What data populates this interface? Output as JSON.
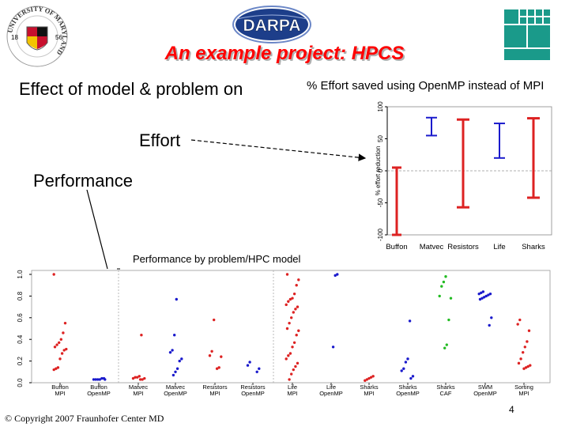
{
  "slide": {
    "title": "An example project: HPCS",
    "left_heading": "Effect of model & problem on",
    "effort_label": "Effort",
    "performance_label": "Performance",
    "copyright": "© Copyright 2007 Fraunhofer Center MD",
    "page_number": "4",
    "logos": {
      "umd": {
        "text": "UNIVERSITY OF MARYLAND",
        "year_left": "18",
        "year_right": "56"
      },
      "darpa": {
        "text": "DARPA"
      }
    },
    "colors": {
      "title": "#ff0000",
      "red": "#dd2222",
      "blue": "#1a1acc",
      "green": "#22bb22"
    }
  },
  "chart_data": [
    {
      "type": "range",
      "title": "% Effort saved using OpenMP instead of MPI",
      "ylabel": "% effort reduction",
      "categories": [
        "Buffon",
        "Matvec",
        "Resistors",
        "Life",
        "Sharks"
      ],
      "ylim": [
        -100,
        100
      ],
      "yticks": [
        -100,
        -50,
        0,
        50,
        100
      ],
      "reference_line": 0,
      "series": [
        {
          "category": "Buffon",
          "low": -100,
          "high": 5,
          "color": "#dd2222"
        },
        {
          "category": "Matvec",
          "low": 55,
          "high": 83,
          "color": "#1a1acc"
        },
        {
          "category": "Resistors",
          "low": -57,
          "high": 80,
          "color": "#dd2222"
        },
        {
          "category": "Life",
          "low": 20,
          "high": 74,
          "color": "#1a1acc"
        },
        {
          "category": "Sharks",
          "low": -42,
          "high": 82,
          "color": "#dd2222"
        }
      ]
    },
    {
      "type": "scatter",
      "title": "Performance by problem/HPC model",
      "yticks": [
        "0.0",
        "0.2",
        "0.4",
        "0.6",
        "0.8",
        "1.0"
      ],
      "ylim": [
        0,
        1
      ],
      "groups": [
        {
          "name": "Buffon",
          "model": "MPI",
          "color": "#dd2222",
          "values": [
            1.0,
            0.55,
            0.46,
            0.4,
            0.37,
            0.35,
            0.33,
            0.31,
            0.3,
            0.27,
            0.22,
            0.14,
            0.13,
            0.12
          ]
        },
        {
          "name": "Buffon",
          "model": "OpenMP",
          "color": "#1a1acc",
          "values": [
            0.04,
            0.04,
            0.03,
            0.03,
            0.03,
            0.03,
            0.03
          ]
        },
        {
          "name": "Matvec",
          "model": "MPI",
          "color": "#dd2222",
          "values": [
            0.44,
            0.06,
            0.05,
            0.05,
            0.04,
            0.04,
            0.03,
            0.03
          ]
        },
        {
          "name": "Matvec",
          "model": "OpenMP",
          "color": "#1a1acc",
          "values": [
            0.77,
            0.44,
            0.3,
            0.28,
            0.22,
            0.2,
            0.13,
            0.1,
            0.07
          ]
        },
        {
          "name": "Resistors",
          "model": "MPI",
          "color": "#dd2222",
          "values": [
            0.58,
            0.29,
            0.25,
            0.24,
            0.14,
            0.13
          ]
        },
        {
          "name": "Resistors",
          "model": "OpenMP",
          "color": "#1a1acc",
          "values": [
            0.19,
            0.16,
            0.13,
            0.1
          ]
        },
        {
          "name": "Life",
          "model": "MPI",
          "color": "#dd2222",
          "values": [
            1.0,
            0.95,
            0.9,
            0.82,
            0.78,
            0.77,
            0.75,
            0.72,
            0.7,
            0.68,
            0.65,
            0.6,
            0.55,
            0.5,
            0.48,
            0.44,
            0.37,
            0.33,
            0.27,
            0.25,
            0.22,
            0.18,
            0.15,
            0.12,
            0.08,
            0.03
          ]
        },
        {
          "name": "Life",
          "model": "OpenMP",
          "color": "#1a1acc",
          "values": [
            1.0,
            0.99,
            0.33
          ]
        },
        {
          "name": "Sharks",
          "model": "MPI",
          "color": "#dd2222",
          "values": [
            0.06,
            0.05,
            0.04,
            0.03,
            0.02
          ]
        },
        {
          "name": "Sharks",
          "model": "OpenMP",
          "color": "#1a1acc",
          "values": [
            0.57,
            0.22,
            0.19,
            0.13,
            0.11,
            0.06,
            0.04
          ]
        },
        {
          "name": "Sharks",
          "model": "CAF",
          "color": "#22bb22",
          "values": [
            0.98,
            0.93,
            0.89,
            0.8,
            0.78,
            0.58,
            0.35,
            0.32
          ]
        },
        {
          "name": "SWM",
          "model": "OpenMP",
          "color": "#1a1acc",
          "values": [
            0.84,
            0.83,
            0.82,
            0.82,
            0.81,
            0.8,
            0.79,
            0.78,
            0.77,
            0.6,
            0.53
          ]
        },
        {
          "name": "Sorting",
          "model": "MPI",
          "color": "#dd2222",
          "values": [
            0.58,
            0.54,
            0.48,
            0.38,
            0.33,
            0.28,
            0.22,
            0.18,
            0.16,
            0.15,
            0.14,
            0.13
          ]
        }
      ]
    }
  ]
}
